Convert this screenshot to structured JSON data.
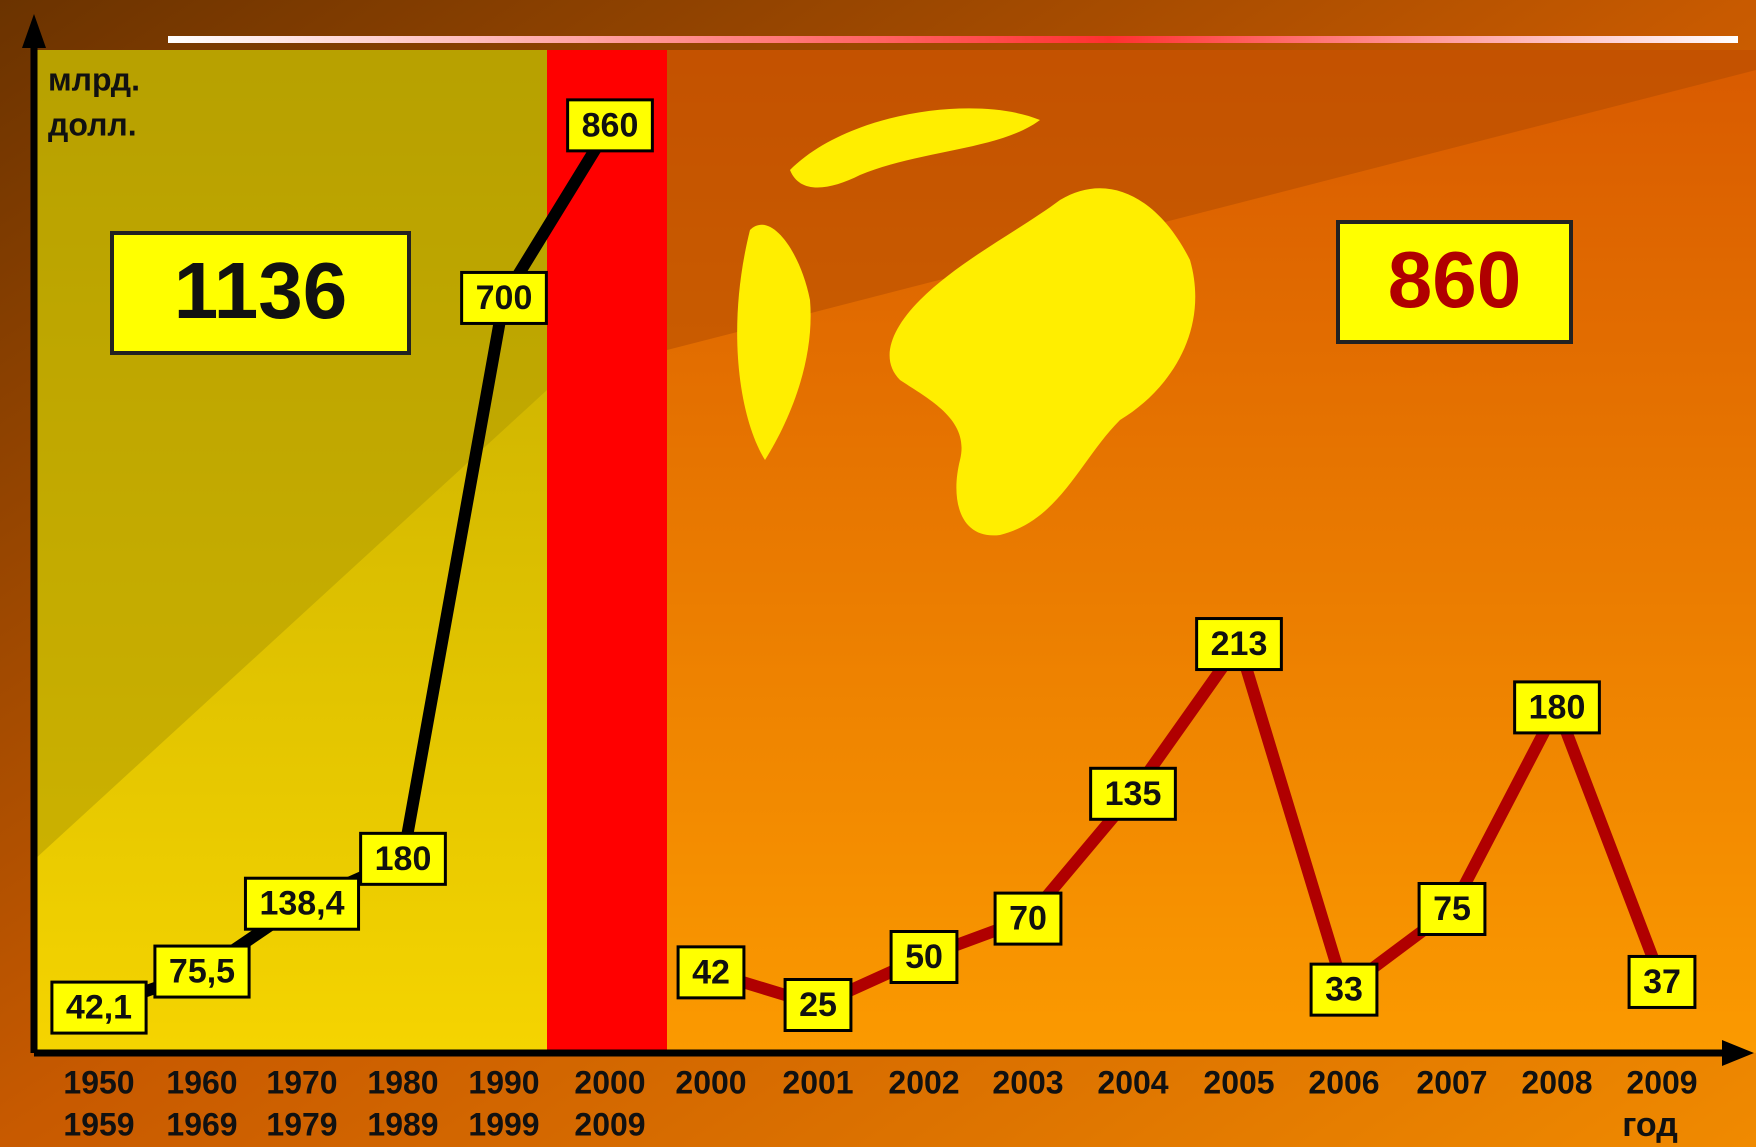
{
  "chart_data": [
    {
      "type": "line",
      "y_label": [
        "млрд.",
        "долл."
      ],
      "total": 1136,
      "categories": [
        [
          "1950",
          "1959"
        ],
        [
          "1960",
          "1969"
        ],
        [
          "1970",
          "1979"
        ],
        [
          "1980",
          "1989"
        ],
        [
          "1990",
          "1999"
        ],
        [
          "2000",
          "2009"
        ]
      ],
      "series": [
        {
          "color": "#000000",
          "values": [
            42.1,
            75.5,
            138.4,
            180,
            700,
            860
          ],
          "value_labels": [
            "42,1",
            "75,5",
            "138,4",
            "180",
            "700",
            "860"
          ]
        }
      ],
      "ylim": [
        0,
        890
      ]
    },
    {
      "type": "line",
      "x_label": "год",
      "total": 860,
      "total_color": "#b00000",
      "categories": [
        "2000",
        "2001",
        "2002",
        "2003",
        "2004",
        "2005",
        "2006",
        "2007",
        "2008",
        "2009"
      ],
      "series": [
        {
          "color": "#b00000",
          "values": [
            42,
            25,
            50,
            70,
            135,
            213,
            33,
            75,
            180,
            37
          ]
        }
      ],
      "ylim": [
        0,
        500
      ]
    }
  ]
}
